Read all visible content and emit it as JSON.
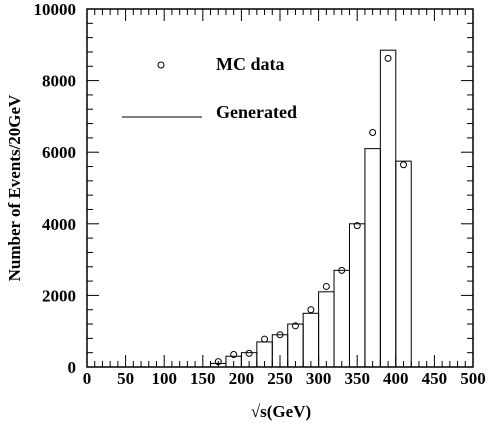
{
  "chart_data": {
    "type": "bar",
    "xlabel": "√s(GeV)",
    "ylabel": "Number of Events/20GeV",
    "xlim": [
      0,
      500
    ],
    "ylim": [
      0,
      10000
    ],
    "x_ticks": [
      "0",
      "50",
      "100",
      "150",
      "200",
      "250",
      "300",
      "350",
      "400",
      "450",
      "500"
    ],
    "y_ticks": [
      "0",
      "2000",
      "4000",
      "6000",
      "8000",
      "10000"
    ],
    "grid": false,
    "legend_position": "top-left",
    "series": [
      {
        "name": "MC data",
        "style": "open-circle markers",
        "points": [
          [
            170,
            150
          ],
          [
            190,
            350
          ],
          [
            210,
            380
          ],
          [
            230,
            780
          ],
          [
            250,
            900
          ],
          [
            270,
            1150
          ],
          [
            290,
            1600
          ],
          [
            310,
            2250
          ],
          [
            330,
            2700
          ],
          [
            350,
            3950
          ],
          [
            370,
            6550
          ],
          [
            390,
            8620
          ],
          [
            410,
            5650
          ]
        ]
      },
      {
        "name": "Generated",
        "style": "step histogram",
        "bin_width": 20,
        "bins": [
          [
            160,
            180,
            100
          ],
          [
            180,
            200,
            300
          ],
          [
            200,
            220,
            400
          ],
          [
            220,
            240,
            700
          ],
          [
            240,
            260,
            900
          ],
          [
            260,
            280,
            1200
          ],
          [
            280,
            300,
            1500
          ],
          [
            300,
            320,
            2100
          ],
          [
            320,
            340,
            2700
          ],
          [
            340,
            360,
            4000
          ],
          [
            360,
            380,
            6100
          ],
          [
            380,
            400,
            8850
          ],
          [
            400,
            420,
            5750
          ]
        ]
      }
    ]
  }
}
